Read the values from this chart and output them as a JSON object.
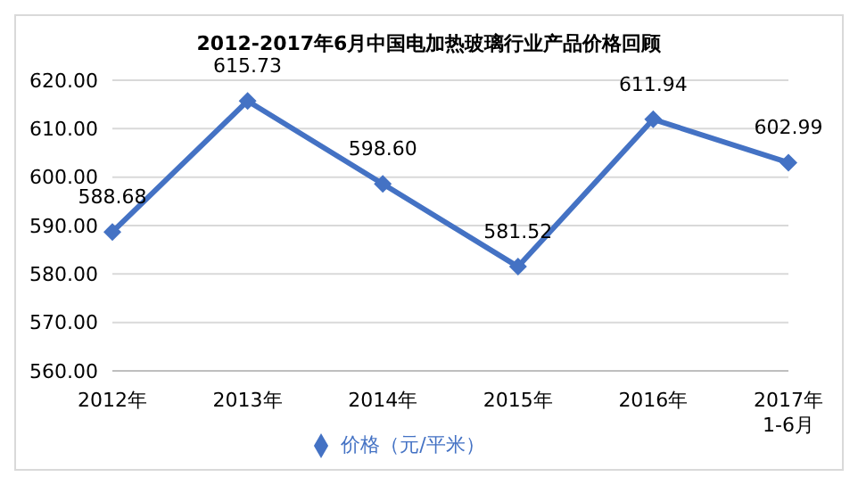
{
  "chart_data": {
    "type": "line",
    "title": "2012-2017年6月中国电加热玻璃行业产品价格回顾",
    "categories": [
      "2012年",
      "2013年",
      "2014年",
      "2015年",
      "2016年",
      "2017年\n1-6月"
    ],
    "series": [
      {
        "name": "价格（元/平米）",
        "color": "#4472c4",
        "values": [
          588.68,
          615.73,
          598.6,
          581.52,
          611.94,
          602.99
        ],
        "value_labels": [
          "588.68",
          "615.73",
          "598.60",
          "581.52",
          "611.94",
          "602.99"
        ]
      }
    ],
    "ylim": [
      560,
      620
    ],
    "yticks": [
      {
        "value": 560,
        "label": "560.00"
      },
      {
        "value": 570,
        "label": "570.00"
      },
      {
        "value": 580,
        "label": "580.00"
      },
      {
        "value": 590,
        "label": "590.00"
      },
      {
        "value": 600,
        "label": "600.00"
      },
      {
        "value": 610,
        "label": "610.00"
      },
      {
        "value": 620,
        "label": "620.00"
      }
    ],
    "grid": "y",
    "legend": "bottom",
    "marker": "diamond",
    "line_style": "solid"
  }
}
